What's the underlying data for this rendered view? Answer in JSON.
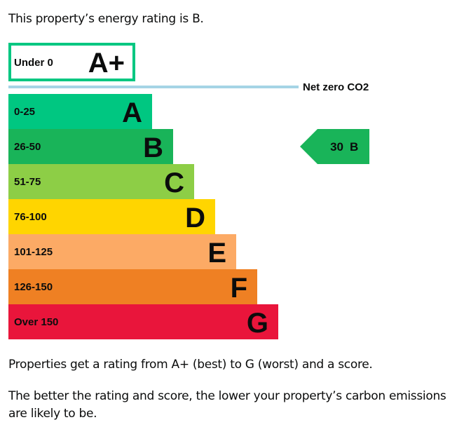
{
  "intro": "This property’s energy rating is B.",
  "footer": {
    "line1": "Properties get a rating from A+ (best) to G (worst) and a score.",
    "line2": "The better the rating and score, the lower your property’s carbon emissions are likely to be."
  },
  "chart_data": {
    "type": "bar",
    "top_band": {
      "range": "Under 0",
      "letter": "A+",
      "border_color": "#00c781"
    },
    "net_zero_label": "Net zero CO2",
    "net_zero_line_color": "#a5d4e5",
    "bands": [
      {
        "range": "0-25",
        "letter": "A",
        "color": "#00c781"
      },
      {
        "range": "26-50",
        "letter": "B",
        "color": "#19b459"
      },
      {
        "range": "51-75",
        "letter": "C",
        "color": "#8dce46"
      },
      {
        "range": "76-100",
        "letter": "D",
        "color": "#ffd500"
      },
      {
        "range": "101-125",
        "letter": "E",
        "color": "#fcaa65"
      },
      {
        "range": "126-150",
        "letter": "F",
        "color": "#ef8023"
      },
      {
        "range": "Over 150",
        "letter": "G",
        "color": "#e9153b"
      }
    ],
    "current": {
      "score": "30",
      "letter": "B",
      "color": "#19b459",
      "band_index": 1
    }
  }
}
